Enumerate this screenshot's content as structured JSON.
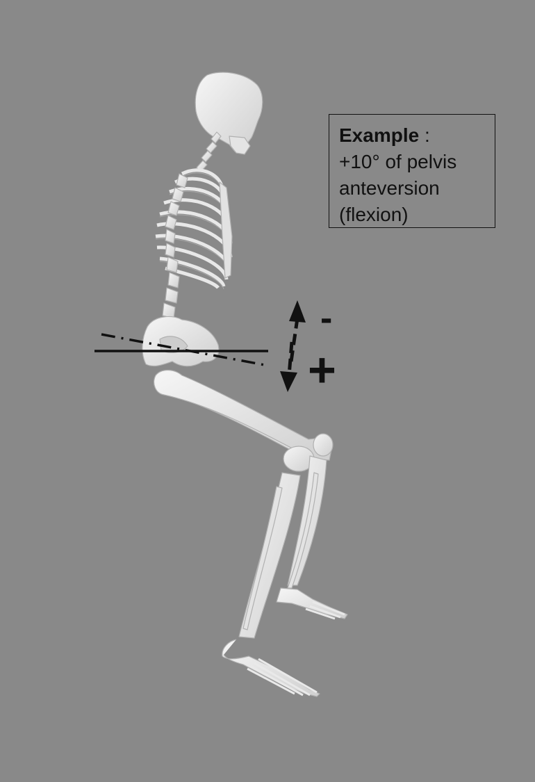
{
  "annotation": {
    "title": "Example",
    "separator": " :",
    "lines": [
      "+10° of pelvis",
      "anteversion",
      "(flexion)"
    ]
  },
  "indicator": {
    "minus": "-",
    "plus": "+"
  },
  "subject": "skeleton-seated-side-view",
  "colors": {
    "background": "#898989",
    "bone": "#ececec",
    "bone_shade": "#bdbdbd",
    "ink": "#111111"
  }
}
